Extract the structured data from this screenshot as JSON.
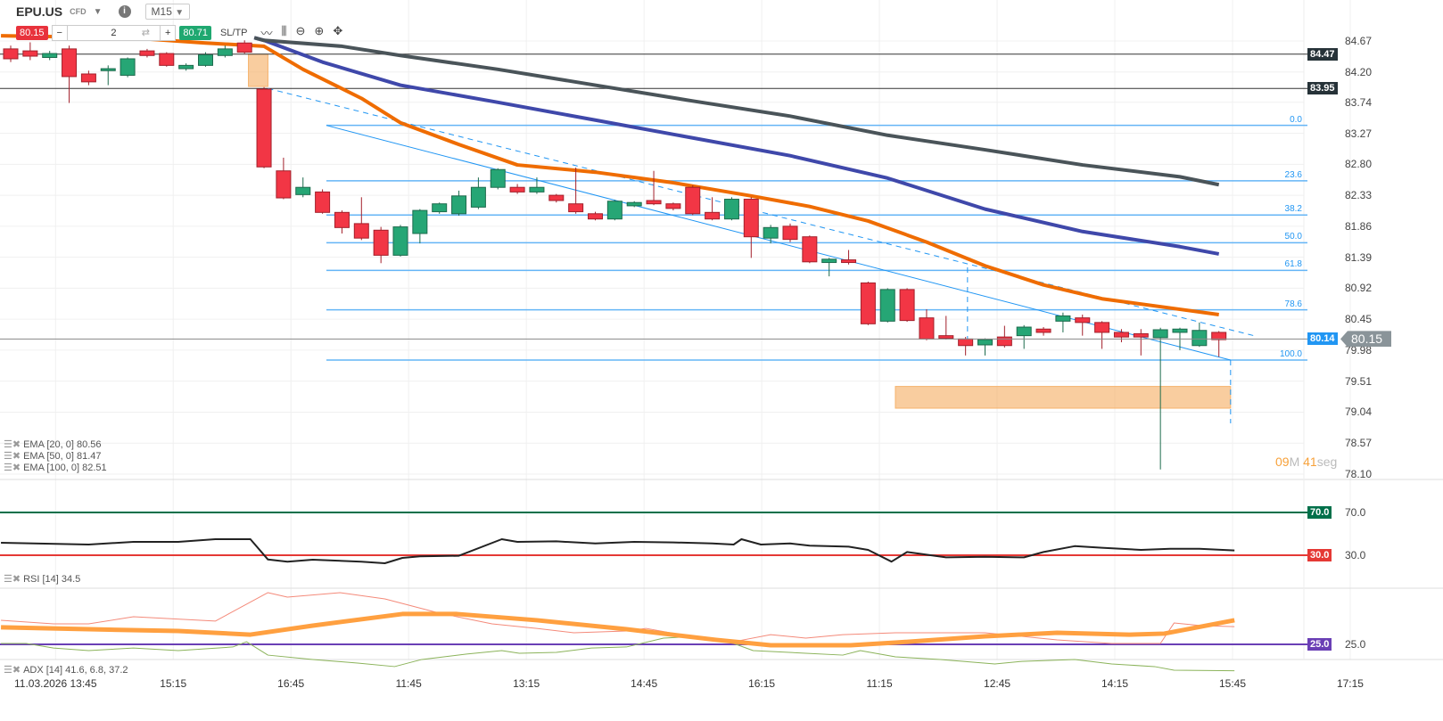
{
  "header": {
    "symbol": "EPU.US",
    "type": "CFD",
    "timeframe": "M15"
  },
  "trade": {
    "sell_price": "80.15",
    "buy_price": "80.71",
    "quantity": "2",
    "minus": "−",
    "plus": "+",
    "sltp": "SL/TP",
    "swap_icon": "⇄"
  },
  "toolbar": [
    {
      "name": "line-chart-icon",
      "glyph": "〰"
    },
    {
      "name": "candles-icon",
      "glyph": "⫼"
    },
    {
      "name": "zoom-out-icon",
      "glyph": "⊖"
    },
    {
      "name": "zoom-in-icon",
      "glyph": "⊕"
    },
    {
      "name": "move-icon",
      "glyph": "✥"
    }
  ],
  "colors": {
    "up": "#26a675",
    "down": "#f23645",
    "ema20": "#ef6c00",
    "ema50": "#3f48aa",
    "ema100": "#4a5459",
    "fib": "#64b5f6",
    "rsi": "#222",
    "rsi70": "#00704a",
    "rsi30": "#e53935",
    "adx": "#ffa040",
    "di_plus": "#f48a7a",
    "di_minus": "#8bb35a",
    "adx25": "#6a3fb5",
    "zone": "#f6b26b"
  },
  "price_axis": {
    "ticks": [
      "84.67",
      "84.20",
      "83.74",
      "83.27",
      "82.80",
      "82.33",
      "81.86",
      "81.39",
      "80.92",
      "80.45",
      "79.98",
      "79.51",
      "79.04",
      "78.57",
      "78.10"
    ],
    "range": [
      78.1,
      84.67
    ]
  },
  "time_axis": [
    "11.03.2026 13:45",
    "15:15",
    "16:45",
    "11:45",
    "13:15",
    "14:45",
    "16:15",
    "11:15",
    "12:45",
    "14:15",
    "15:45",
    "17:15"
  ],
  "levels": [
    {
      "price": 84.47,
      "label": "84.47"
    },
    {
      "price": 83.95,
      "label": "83.95"
    }
  ],
  "current": {
    "price": 80.15,
    "label": "80.15",
    "bid_label": "80.14"
  },
  "fib": {
    "high": 83.39,
    "low": 79.83,
    "levels": [
      {
        "pct": 0,
        "label": "0.0"
      },
      {
        "pct": 23.6,
        "label": "23.6"
      },
      {
        "pct": 38.2,
        "label": "38.2"
      },
      {
        "pct": 50,
        "label": "50.0"
      },
      {
        "pct": 61.8,
        "label": "61.8"
      },
      {
        "pct": 78.6,
        "label": "78.6"
      },
      {
        "pct": 100,
        "label": "100.0"
      }
    ]
  },
  "candles": [
    [
      84.55,
      84.6,
      84.35,
      84.4
    ],
    [
      84.52,
      84.65,
      84.38,
      84.44
    ],
    [
      84.42,
      84.52,
      84.38,
      84.48
    ],
    [
      84.55,
      84.6,
      83.73,
      84.13
    ],
    [
      84.17,
      84.22,
      84.0,
      84.05
    ],
    [
      84.22,
      84.3,
      84.0,
      84.25
    ],
    [
      84.15,
      84.42,
      84.12,
      84.4
    ],
    [
      84.52,
      84.55,
      84.42,
      84.45
    ],
    [
      84.48,
      84.5,
      84.28,
      84.3
    ],
    [
      84.25,
      84.33,
      84.22,
      84.3
    ],
    [
      84.3,
      84.5,
      84.28,
      84.46
    ],
    [
      84.45,
      84.6,
      84.42,
      84.55
    ],
    [
      84.64,
      84.68,
      84.48,
      84.5
    ],
    [
      83.94,
      83.97,
      82.74,
      82.76
    ],
    [
      82.7,
      82.9,
      82.27,
      82.29
    ],
    [
      82.34,
      82.6,
      82.3,
      82.45
    ],
    [
      82.38,
      82.42,
      82.05,
      82.07
    ],
    [
      82.07,
      82.1,
      81.75,
      81.84
    ],
    [
      81.9,
      82.3,
      81.65,
      81.68
    ],
    [
      81.8,
      81.85,
      81.3,
      81.42
    ],
    [
      81.42,
      81.88,
      81.4,
      81.85
    ],
    [
      81.75,
      82.12,
      81.6,
      82.1
    ],
    [
      82.08,
      82.22,
      82.05,
      82.2
    ],
    [
      82.05,
      82.4,
      82.02,
      82.32
    ],
    [
      82.15,
      82.6,
      82.12,
      82.45
    ],
    [
      82.45,
      82.74,
      82.42,
      82.72
    ],
    [
      82.45,
      82.5,
      82.35,
      82.38
    ],
    [
      82.38,
      82.6,
      82.35,
      82.45
    ],
    [
      82.33,
      82.35,
      82.22,
      82.25
    ],
    [
      82.2,
      82.75,
      82.05,
      82.08
    ],
    [
      82.05,
      82.08,
      81.95,
      81.97
    ],
    [
      81.97,
      82.26,
      81.95,
      82.24
    ],
    [
      82.17,
      82.24,
      82.15,
      82.22
    ],
    [
      82.25,
      82.7,
      82.18,
      82.2
    ],
    [
      82.2,
      82.22,
      82.1,
      82.13
    ],
    [
      82.45,
      82.48,
      82.03,
      82.05
    ],
    [
      82.07,
      82.3,
      81.95,
      81.97
    ],
    [
      81.97,
      82.3,
      81.95,
      82.27
    ],
    [
      82.27,
      82.3,
      81.38,
      81.7
    ],
    [
      81.68,
      81.88,
      81.6,
      81.84
    ],
    [
      81.86,
      81.9,
      81.62,
      81.66
    ],
    [
      81.7,
      81.72,
      81.3,
      81.32
    ],
    [
      81.31,
      81.38,
      81.1,
      81.36
    ],
    [
      81.35,
      81.5,
      81.28,
      81.31
    ],
    [
      81.0,
      81.02,
      80.36,
      80.38
    ],
    [
      80.42,
      80.92,
      80.4,
      80.9
    ],
    [
      80.9,
      80.92,
      80.41,
      80.43
    ],
    [
      80.47,
      80.6,
      80.13,
      80.15
    ],
    [
      80.2,
      80.5,
      80.14,
      80.16
    ],
    [
      80.15,
      80.18,
      79.9,
      80.05
    ],
    [
      80.06,
      80.16,
      79.9,
      80.14
    ],
    [
      80.18,
      80.35,
      80.02,
      80.05
    ],
    [
      80.2,
      80.36,
      80.0,
      80.33
    ],
    [
      80.3,
      80.33,
      80.2,
      80.25
    ],
    [
      80.42,
      80.55,
      80.25,
      80.5
    ],
    [
      80.47,
      80.52,
      80.2,
      80.4
    ],
    [
      80.4,
      80.42,
      80.0,
      80.25
    ],
    [
      80.25,
      80.3,
      80.1,
      80.18
    ],
    [
      80.23,
      80.3,
      79.9,
      80.18
    ],
    [
      80.17,
      80.32,
      78.17,
      80.29
    ],
    [
      80.25,
      80.32,
      79.98,
      80.3
    ],
    [
      80.05,
      80.4,
      80.03,
      80.28
    ],
    [
      80.25,
      80.27,
      79.88,
      80.14
    ]
  ],
  "ema": [
    {
      "label": "EMA [20, 0] 80.56",
      "color_key": "ema20",
      "width": 4,
      "points": [
        [
          -0.5,
          84.75
        ],
        [
          6,
          84.72
        ],
        [
          10,
          84.64
        ],
        [
          13,
          84.59
        ],
        [
          15,
          84.24
        ],
        [
          18,
          83.8
        ],
        [
          20,
          83.43
        ],
        [
          23,
          83.1
        ],
        [
          26,
          82.79
        ],
        [
          30,
          82.68
        ],
        [
          34,
          82.52
        ],
        [
          38,
          82.32
        ],
        [
          41,
          82.16
        ],
        [
          44,
          81.94
        ],
        [
          47,
          81.62
        ],
        [
          50,
          81.26
        ],
        [
          53,
          80.97
        ],
        [
          56,
          80.76
        ],
        [
          60,
          80.6
        ],
        [
          62,
          80.52
        ]
      ]
    },
    {
      "label": "EMA [50, 0] 81.47",
      "color_key": "ema50",
      "width": 4,
      "points": [
        [
          12.5,
          84.72
        ],
        [
          13,
          84.68
        ],
        [
          16,
          84.35
        ],
        [
          20,
          84.0
        ],
        [
          25,
          83.74
        ],
        [
          30,
          83.47
        ],
        [
          35,
          83.2
        ],
        [
          40,
          82.93
        ],
        [
          45,
          82.59
        ],
        [
          50,
          82.12
        ],
        [
          55,
          81.78
        ],
        [
          60,
          81.55
        ],
        [
          62,
          81.44
        ]
      ]
    },
    {
      "label": "EMA [100, 0] 82.51",
      "color_key": "ema100",
      "width": 4,
      "points": [
        [
          12.5,
          84.72
        ],
        [
          13,
          84.68
        ],
        [
          17,
          84.59
        ],
        [
          20,
          84.45
        ],
        [
          25,
          84.24
        ],
        [
          30,
          84.0
        ],
        [
          35,
          83.76
        ],
        [
          40,
          83.53
        ],
        [
          45,
          83.24
        ],
        [
          50,
          83.02
        ],
        [
          55,
          82.79
        ],
        [
          60,
          82.61
        ],
        [
          62,
          82.49
        ]
      ]
    }
  ],
  "trendlines": [
    {
      "from": [
        16.2,
        83.39
      ],
      "to": [
        62.6,
        79.83
      ],
      "dashed": false
    },
    {
      "from": [
        13.2,
        83.95
      ],
      "to": [
        63.8,
        80.2
      ],
      "dashed": true
    }
  ],
  "zones": [
    {
      "from": 12.2,
      "to": 13.2,
      "top": 84.47,
      "bottom": 83.98
    },
    {
      "from": 45.4,
      "to": 62.6,
      "top": 79.43,
      "bottom": 79.1
    }
  ],
  "countdown": {
    "min": "09",
    "min_unit": "M",
    "sec": "41",
    "sec_unit": "seg"
  },
  "rsi": {
    "label": "RSI [14] 34.5",
    "upper": 70,
    "lower": 30,
    "upper_label": "70.0",
    "lower_label": "30.0",
    "points": [
      [
        -0.5,
        41.7
      ],
      [
        4,
        40
      ],
      [
        6.3,
        42.5
      ],
      [
        8.6,
        42.5
      ],
      [
        10.5,
        45
      ],
      [
        12.3,
        45
      ],
      [
        13.2,
        26
      ],
      [
        14.2,
        24
      ],
      [
        15.5,
        25.8
      ],
      [
        18,
        24
      ],
      [
        19.2,
        22.5
      ],
      [
        20.1,
        27.5
      ],
      [
        21,
        29
      ],
      [
        23,
        29.5
      ],
      [
        25.2,
        45
      ],
      [
        26,
        42.5
      ],
      [
        28,
        43
      ],
      [
        30,
        41
      ],
      [
        32,
        42.5
      ],
      [
        34,
        42
      ],
      [
        36,
        41
      ],
      [
        37.1,
        40
      ],
      [
        37.5,
        45
      ],
      [
        38.5,
        40
      ],
      [
        40,
        41
      ],
      [
        41,
        39
      ],
      [
        43,
        38
      ],
      [
        44,
        35
      ],
      [
        45.2,
        24
      ],
      [
        46,
        33
      ],
      [
        48,
        28
      ],
      [
        50,
        28.5
      ],
      [
        52,
        28
      ],
      [
        53,
        33
      ],
      [
        54.6,
        38.5
      ],
      [
        56,
        37
      ],
      [
        58,
        35
      ],
      [
        59.5,
        36
      ],
      [
        61,
        36
      ],
      [
        62.8,
        34.5
      ]
    ]
  },
  "adx": {
    "label": "ADX [14] 41.6, 6.8, 37.2",
    "level": 25,
    "level_label": "25.0",
    "adx": [
      [
        -0.5,
        36.7
      ],
      [
        4,
        35.4
      ],
      [
        8.6,
        34.2
      ],
      [
        12.3,
        31.7
      ],
      [
        15.5,
        37.9
      ],
      [
        20.1,
        45.9
      ],
      [
        22.9,
        45.9
      ],
      [
        27,
        41.6
      ],
      [
        31.6,
        35.4
      ],
      [
        36.2,
        28.1
      ],
      [
        39,
        24.4
      ],
      [
        43.1,
        24.4
      ],
      [
        45.4,
        26.2
      ],
      [
        50,
        30.5
      ],
      [
        53.7,
        33.0
      ],
      [
        57.4,
        31.7
      ],
      [
        59.2,
        32.4
      ],
      [
        62.8,
        41.6
      ]
    ],
    "di_plus": [
      [
        -0.5,
        41.6
      ],
      [
        2.2,
        39.1
      ],
      [
        4,
        39.1
      ],
      [
        6.3,
        44
      ],
      [
        10.5,
        41
      ],
      [
        13.2,
        60.6
      ],
      [
        14.2,
        57.5
      ],
      [
        16.9,
        60.6
      ],
      [
        19.2,
        56.3
      ],
      [
        22,
        46.5
      ],
      [
        24.7,
        39.1
      ],
      [
        27,
        36
      ],
      [
        28.9,
        33
      ],
      [
        31.6,
        34.2
      ],
      [
        32.6,
        36
      ],
      [
        34.4,
        31.7
      ],
      [
        37.1,
        26.8
      ],
      [
        39,
        31.7
      ],
      [
        40.8,
        29.3
      ],
      [
        42.7,
        31.7
      ],
      [
        45.4,
        33
      ],
      [
        50,
        33
      ],
      [
        53.7,
        28.1
      ],
      [
        56.5,
        25.6
      ],
      [
        59,
        25.6
      ],
      [
        59.7,
        39.7
      ],
      [
        61.1,
        37.9
      ],
      [
        62.8,
        37.2
      ]
    ],
    "di_minus": [
      [
        -0.5,
        25.6
      ],
      [
        0.8,
        25.6
      ],
      [
        2.2,
        22.5
      ],
      [
        4,
        20.7
      ],
      [
        6.3,
        22.5
      ],
      [
        8.6,
        20.7
      ],
      [
        11.4,
        23.2
      ],
      [
        12.1,
        26.8
      ],
      [
        13.2,
        17.6
      ],
      [
        15.5,
        14.6
      ],
      [
        17.8,
        12.1
      ],
      [
        19.7,
        9.7
      ],
      [
        21.1,
        14.6
      ],
      [
        23.4,
        18.3
      ],
      [
        25.2,
        20.7
      ],
      [
        26.1,
        18.9
      ],
      [
        28,
        19.5
      ],
      [
        29.8,
        22.5
      ],
      [
        31.6,
        23.2
      ],
      [
        33.5,
        29.3
      ],
      [
        35.3,
        30.5
      ],
      [
        37.1,
        25.6
      ],
      [
        38.1,
        20.7
      ],
      [
        40.8,
        18.9
      ],
      [
        42.7,
        17.6
      ],
      [
        43.6,
        20.7
      ],
      [
        45.4,
        16.4
      ],
      [
        47.7,
        14.6
      ],
      [
        50.5,
        11.5
      ],
      [
        51.9,
        13.3
      ],
      [
        54.6,
        14.6
      ],
      [
        56.5,
        11.5
      ],
      [
        58.7,
        9.7
      ],
      [
        59.7,
        7.2
      ],
      [
        62.8,
        6.8
      ]
    ]
  }
}
